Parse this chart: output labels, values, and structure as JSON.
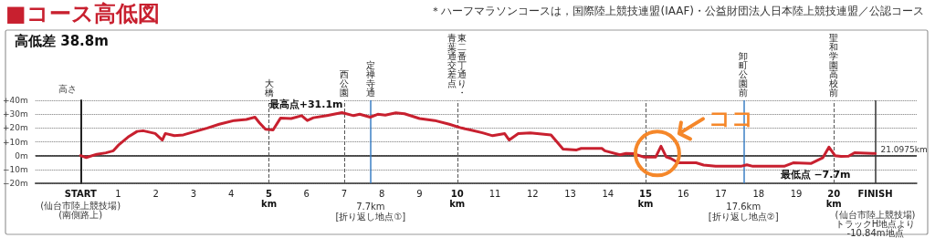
{
  "chart_data": {
    "type": "line",
    "title": "■コース高低図",
    "subtitle": "高低差 38.8m",
    "ylabel": "高さ",
    "x": [
      0,
      0.15,
      0.43,
      0.67,
      0.87,
      1.02,
      1.26,
      1.5,
      1.66,
      1.98,
      2.17,
      2.25,
      2.49,
      2.73,
      3.05,
      3.37,
      3.68,
      4.08,
      4.4,
      4.63,
      4.75,
      4.91,
      5.11,
      5.31,
      5.59,
      5.87,
      6.02,
      6.18,
      6.54,
      6.94,
      7.25,
      7.41,
      7.69,
      7.89,
      8.09,
      8.37,
      8.6,
      9.0,
      9.4,
      9.79,
      10.11,
      10.35,
      10.67,
      10.94,
      11.26,
      11.38,
      11.62,
      11.94,
      12.49,
      12.81,
      13.17,
      13.29,
      13.84,
      13.92,
      14.32,
      14.48,
      14.67,
      14.95,
      15.27,
      15.41,
      15.55,
      15.67,
      15.87,
      16.34,
      16.54,
      16.86,
      17.53,
      17.69,
      17.85,
      18.68,
      18.92,
      19.4,
      19.71,
      19.87,
      20.03,
      20.19,
      20.39,
      20.55,
      21.02,
      21.0975
    ],
    "series": [
      {
        "color": "#c8202f",
        "values": [
          0,
          -1.4,
          1,
          2,
          3.5,
          8,
          13.4,
          17.5,
          18,
          16,
          11.3,
          16,
          14.4,
          15,
          17.5,
          20,
          22.7,
          25.4,
          26.2,
          27.8,
          23.7,
          19,
          18.6,
          27.2,
          26.8,
          28.9,
          25.4,
          27.4,
          28.9,
          31.1,
          28.9,
          29.9,
          27.8,
          29.9,
          29.3,
          30.9,
          30.3,
          26.8,
          25.4,
          22.7,
          20,
          18.6,
          16.5,
          14.4,
          15.9,
          11.3,
          15.9,
          16.5,
          15,
          4.7,
          4.1,
          5.2,
          5.2,
          3.5,
          0.6,
          1.6,
          1.4,
          -1,
          -1,
          6.8,
          -1,
          -2,
          -5.2,
          -5.2,
          -6.8,
          -7.7,
          -7.7,
          -6.6,
          -7.7,
          -7.7,
          -5.2,
          -5.6,
          -1.4,
          6.2,
          0,
          -0.6,
          -0.4,
          2.1,
          1.6,
          1.6
        ]
      }
    ],
    "xlim": [
      -1.2,
      22.2
    ],
    "xticks": [
      {
        "value": 0,
        "label": "START"
      },
      1,
      2,
      3,
      4,
      {
        "value": 5,
        "label": "5\nkm"
      },
      6,
      7,
      8,
      9,
      {
        "value": 10,
        "label": "10\nkm"
      },
      11,
      12,
      13,
      14,
      {
        "value": 15,
        "label": "15\nkm"
      },
      16,
      17,
      18,
      19,
      {
        "value": 20,
        "label": "20\nkm"
      },
      {
        "value": 21.0975,
        "label": "FINISH"
      }
    ],
    "ylim": [
      -20,
      40
    ],
    "yticks": [
      {
        "value": -20,
        "label": "−20m"
      },
      {
        "value": -10,
        "label": "−10m"
      },
      {
        "value": 0,
        "label": "0m"
      },
      {
        "value": 10,
        "label": "+10m"
      },
      {
        "value": 20,
        "label": "+20m"
      },
      {
        "value": 30,
        "label": "+30m"
      },
      {
        "value": 40,
        "label": "+40m"
      }
    ],
    "grid": "y",
    "marker": "none",
    "line_style": "solid",
    "ref_lines": [
      {
        "axis": "y",
        "value": 0,
        "label": null,
        "color": "#222222",
        "line_style": "solid"
      },
      {
        "axis": "x",
        "value": 5,
        "label": "大橋",
        "color": "#555555",
        "line_style": "dashed"
      },
      {
        "axis": "x",
        "value": 7,
        "label": "西公園",
        "color": "#555555",
        "line_style": "dashed"
      },
      {
        "axis": "x",
        "value": 7.7,
        "label": "定禅寺通",
        "color": "#3b7fc4",
        "line_style": "solid"
      },
      {
        "axis": "x",
        "value": 10,
        "label": "東二番丁通り・青葉通交差点",
        "color": "#555555",
        "line_style": "dashed"
      },
      {
        "axis": "x",
        "value": 15,
        "label": null,
        "color": "#555555",
        "line_style": "dashed"
      },
      {
        "axis": "x",
        "value": 17.6,
        "label": "卸町公園前",
        "color": "#3b7fc4",
        "line_style": "solid"
      },
      {
        "axis": "x",
        "value": 20,
        "label": "聖和学園高校前",
        "color": "#555555",
        "line_style": "dashed"
      },
      {
        "axis": "x",
        "value": 21.0975,
        "label": null,
        "color": "#333333",
        "line_style": "solid"
      }
    ],
    "annotations": [
      "＊ハーフマラソンコースは，国際陸上競技連盟(IAAF)・公益財団法人日本陸上競技連盟／公認コース",
      "(仙台市陸上競技場)\n(南側路上)",
      {
        "text": "7.7km\n[折り返し地点①]",
        "x": 7.7,
        "y": -20
      },
      {
        "text": "17.6km\n[折り返し地点②]",
        "x": 17.6,
        "y": -20
      },
      "(仙台市陸上競技場)\nトラックH地点より\n-10.84m地点",
      {
        "text": "21.0975km",
        "x": 21.0975,
        "y": 0
      },
      {
        "text": "最低点 −7.7m",
        "x": 17.85,
        "y": -7.7
      },
      {
        "text": "最高点+31.1m",
        "x": 6.94,
        "y": 31.1
      },
      {
        "text": "ココ",
        "x": 15.41,
        "y": 6.8
      }
    ]
  }
}
